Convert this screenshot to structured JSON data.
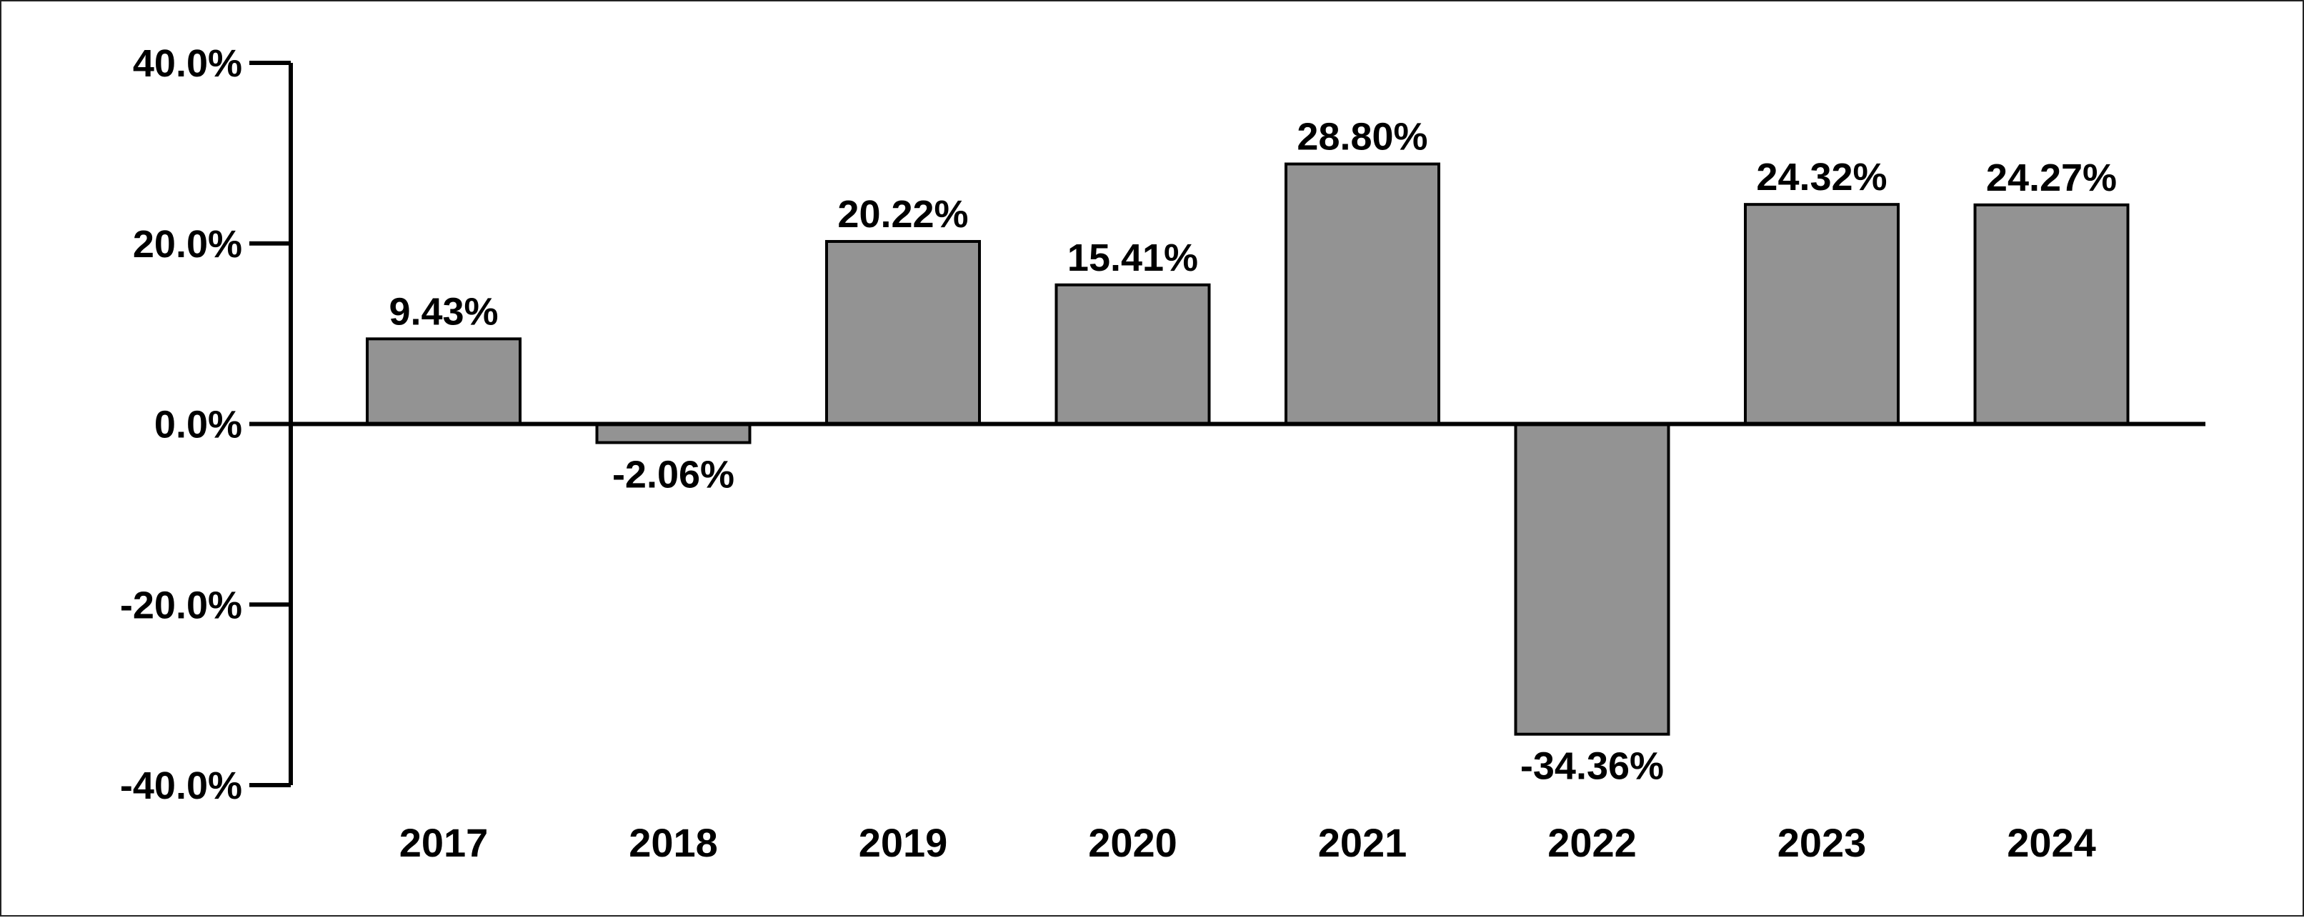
{
  "chart_data": {
    "type": "bar",
    "categories": [
      "2017",
      "2018",
      "2019",
      "2020",
      "2021",
      "2022",
      "2023",
      "2024"
    ],
    "values": [
      9.43,
      -2.06,
      20.22,
      15.41,
      28.8,
      -34.36,
      24.32,
      24.27
    ],
    "value_labels": [
      "9.43%",
      "-2.06%",
      "20.22%",
      "15.41%",
      "28.80%",
      "-34.36%",
      "24.32%",
      "24.27%"
    ],
    "title": "",
    "xlabel": "",
    "ylabel": "",
    "ylim": [
      -40,
      40
    ],
    "yticks": [
      40,
      20,
      0,
      -20,
      -40
    ],
    "ytick_labels": [
      "40.0%",
      "20.0%",
      "0.0%",
      "-20.0%",
      "-40.0%"
    ],
    "grid": false,
    "legend": "none",
    "colors": {
      "bar_fill": "#939393",
      "bar_stroke": "#000000",
      "axis": "#000000"
    }
  }
}
